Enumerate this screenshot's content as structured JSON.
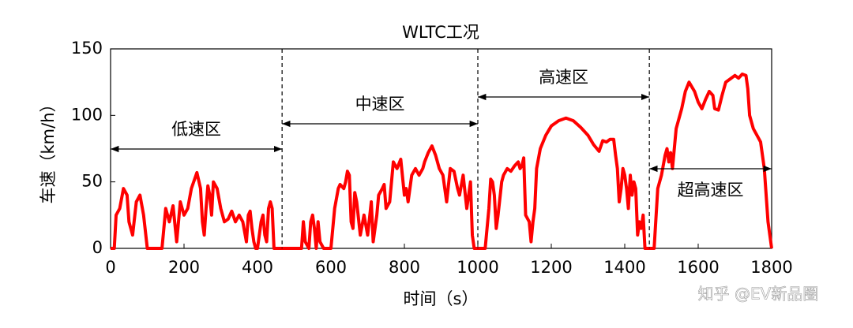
{
  "chart_data": {
    "type": "line",
    "title": "WLTC工况",
    "x_label": "时间（s）",
    "y_label": "车速（km/h）",
    "x": [
      0,
      10,
      15,
      25,
      35,
      45,
      50,
      60,
      70,
      80,
      90,
      100,
      140,
      150,
      160,
      170,
      180,
      190,
      200,
      210,
      220,
      235,
      245,
      250,
      255,
      260,
      265,
      270,
      275,
      280,
      290,
      300,
      310,
      320,
      330,
      340,
      350,
      360,
      370,
      375,
      380,
      385,
      390,
      395,
      400,
      410,
      415,
      420,
      425,
      430,
      435,
      440,
      445,
      467,
      520,
      525,
      530,
      540,
      545,
      550,
      555,
      560,
      565,
      570,
      580,
      600,
      610,
      620,
      625,
      635,
      640,
      645,
      650,
      655,
      660,
      665,
      670,
      680,
      690,
      700,
      710,
      715,
      725,
      730,
      740,
      745,
      750,
      760,
      770,
      780,
      790,
      800,
      805,
      810,
      820,
      830,
      840,
      850,
      855,
      865,
      875,
      885,
      895,
      905,
      915,
      925,
      935,
      945,
      950,
      960,
      970,
      980,
      985,
      990,
      1000,
      1020,
      1030,
      1035,
      1040,
      1045,
      1050,
      1055,
      1065,
      1070,
      1080,
      1090,
      1100,
      1110,
      1115,
      1120,
      1125,
      1130,
      1140,
      1145,
      1150,
      1155,
      1160,
      1170,
      1185,
      1200,
      1220,
      1240,
      1260,
      1280,
      1300,
      1315,
      1330,
      1340,
      1350,
      1360,
      1370,
      1375,
      1380,
      1385,
      1390,
      1395,
      1400,
      1405,
      1410,
      1415,
      1420,
      1425,
      1430,
      1435,
      1440,
      1445,
      1450,
      1455,
      1477,
      1480,
      1490,
      1500,
      1510,
      1515,
      1520,
      1525,
      1530,
      1540,
      1555,
      1565,
      1575,
      1590,
      1600,
      1610,
      1620,
      1630,
      1640,
      1645,
      1655,
      1665,
      1675,
      1690,
      1700,
      1710,
      1720,
      1730,
      1735,
      1740,
      1750,
      1760,
      1770,
      1780,
      1790,
      1800
    ],
    "series": [
      {
        "name": "车速",
        "color": "#ff0000",
        "values": [
          0,
          0,
          25,
          30,
          45,
          40,
          20,
          10,
          35,
          40,
          25,
          0,
          0,
          30,
          20,
          32,
          5,
          35,
          25,
          30,
          45,
          57,
          45,
          20,
          10,
          30,
          47,
          40,
          25,
          50,
          45,
          30,
          20,
          22,
          28,
          20,
          25,
          20,
          5,
          25,
          28,
          15,
          5,
          0,
          0,
          20,
          25,
          10,
          5,
          30,
          35,
          30,
          0,
          0,
          0,
          20,
          5,
          0,
          20,
          25,
          15,
          0,
          20,
          5,
          0,
          0,
          30,
          45,
          48,
          45,
          50,
          58,
          55,
          20,
          15,
          42,
          35,
          10,
          25,
          10,
          35,
          5,
          25,
          40,
          45,
          48,
          30,
          35,
          65,
          60,
          67,
          40,
          45,
          35,
          55,
          60,
          55,
          60,
          65,
          72,
          77,
          70,
          60,
          55,
          35,
          60,
          58,
          45,
          40,
          55,
          30,
          50,
          10,
          0,
          0,
          0,
          30,
          52,
          50,
          40,
          15,
          25,
          50,
          55,
          60,
          58,
          62,
          65,
          60,
          62,
          68,
          25,
          20,
          5,
          20,
          30,
          60,
          75,
          85,
          92,
          96,
          98,
          96,
          91,
          85,
          78,
          73,
          81,
          80,
          82,
          82,
          70,
          60,
          35,
          45,
          60,
          55,
          45,
          30,
          55,
          40,
          50,
          45,
          10,
          20,
          15,
          25,
          0,
          0,
          0,
          45,
          55,
          70,
          75,
          65,
          72,
          60,
          90,
          105,
          118,
          125,
          118,
          110,
          105,
          112,
          118,
          115,
          105,
          104,
          115,
          125,
          128,
          130,
          128,
          131,
          130,
          120,
          100,
          90,
          85,
          80,
          60,
          20,
          0
        ]
      }
    ],
    "phases": [
      {
        "label": "低速区",
        "start": 0,
        "end": 467
      },
      {
        "label": "中速区",
        "start": 467,
        "end": 1000
      },
      {
        "label": "高速区",
        "start": 1000,
        "end": 1467
      },
      {
        "label": "超高速区",
        "start": 1467,
        "end": 1800
      }
    ],
    "xlim": [
      0,
      1800
    ],
    "xticks": [
      0,
      200,
      400,
      600,
      800,
      1000,
      1200,
      1400,
      1600,
      1800
    ],
    "ylim": [
      0,
      150
    ],
    "yticks": [
      0,
      50,
      100,
      150
    ],
    "watermark": "知乎 @EV新品圈"
  }
}
